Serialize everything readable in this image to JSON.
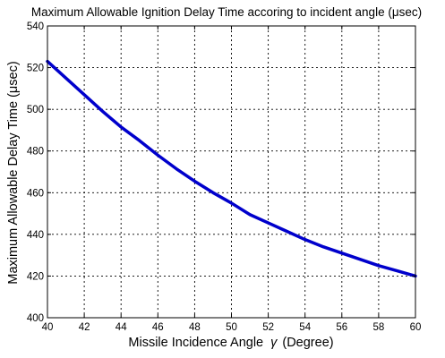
{
  "chart_data": {
    "type": "line",
    "title": "Maximum Allowable Ignition Delay Time accoring to incident angle (μsec)",
    "xlabel_prefix": "Missile Incidence Angle",
    "xlabel_symbol": "γ",
    "xlabel_suffix": "(Degree)",
    "ylabel": "Maximum Allowable Delay Time (μsec)",
    "xlim": [
      40,
      60
    ],
    "ylim": [
      400,
      540
    ],
    "xticks": [
      40,
      42,
      44,
      46,
      48,
      50,
      52,
      54,
      56,
      58,
      60
    ],
    "yticks": [
      400,
      420,
      440,
      460,
      480,
      500,
      520,
      540
    ],
    "grid": true,
    "series": [
      {
        "color": "#0000cc",
        "x": [
          40,
          41,
          42,
          43,
          44,
          45,
          46,
          47,
          48,
          49,
          50,
          51,
          52,
          53,
          54,
          55,
          56,
          57,
          58,
          59,
          60
        ],
        "y": [
          523,
          515,
          507,
          499,
          491.5,
          485,
          478,
          471.5,
          465.5,
          460,
          455,
          449.5,
          445.5,
          441.5,
          437.5,
          434,
          431,
          428,
          425,
          422.5,
          420
        ]
      }
    ]
  }
}
